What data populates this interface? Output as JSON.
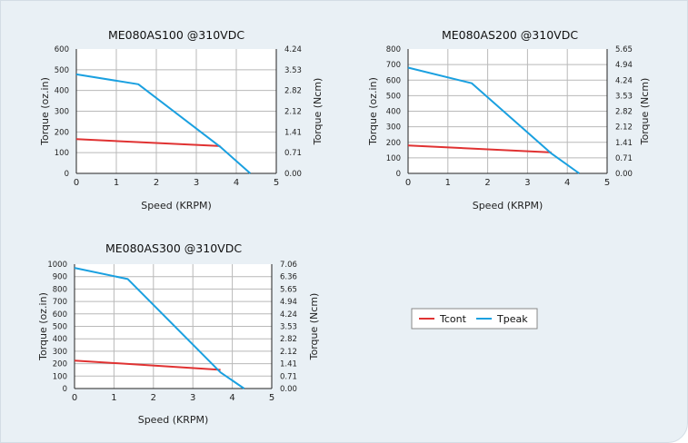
{
  "colors": {
    "tcont": "#e03232",
    "tpeak": "#1aa0e0",
    "grid": "#b9b9b9",
    "panel": "#e9f0f5"
  },
  "legend": {
    "tcont": "Tcont",
    "tpeak": "Tpeak"
  },
  "chart_data": [
    {
      "type": "line",
      "title": "ME080AS100 @310VDC",
      "xlabel": "Speed (KRPM)",
      "ylabel": "Torque (oz.in)",
      "y2label": "Torque (Ncm)",
      "xlim": [
        0,
        5
      ],
      "ylim": [
        0,
        600
      ],
      "x_ticks": [
        "0",
        "1",
        "2",
        "3",
        "4",
        "5"
      ],
      "y_ticks": [
        "0",
        "100",
        "200",
        "300",
        "400",
        "500",
        "600"
      ],
      "y2_ticks": [
        "0.00",
        "0.71",
        "1.41",
        "2.12",
        "2.82",
        "3.53",
        "4.24"
      ],
      "grid": true,
      "series": [
        {
          "name": "Tcont",
          "x": [
            0,
            3.6
          ],
          "y": [
            165,
            132
          ]
        },
        {
          "name": "Tpeak",
          "x": [
            0,
            1.55,
            3.6,
            4.35
          ],
          "y": [
            478,
            430,
            128,
            0
          ]
        }
      ]
    },
    {
      "type": "line",
      "title": "ME080AS200 @310VDC",
      "xlabel": "Speed (KRPM)",
      "ylabel": "Torque (oz.in)",
      "y2label": "Torque (Ncm)",
      "xlim": [
        0,
        5
      ],
      "ylim": [
        0,
        800
      ],
      "x_ticks": [
        "0",
        "1",
        "2",
        "3",
        "4",
        "5"
      ],
      "y_ticks": [
        "0",
        "100",
        "200",
        "300",
        "400",
        "500",
        "600",
        "700",
        "800"
      ],
      "y2_ticks": [
        "0.00",
        "0.71",
        "1.41",
        "2.12",
        "2.82",
        "3.53",
        "4.24",
        "4.94",
        "5.65"
      ],
      "grid": true,
      "series": [
        {
          "name": "Tcont",
          "x": [
            0,
            3.6
          ],
          "y": [
            180,
            135
          ]
        },
        {
          "name": "Tpeak",
          "x": [
            0,
            1.6,
            3.6,
            4.3
          ],
          "y": [
            680,
            580,
            128,
            0
          ]
        }
      ]
    },
    {
      "type": "line",
      "title": "ME080AS300 @310VDC",
      "xlabel": "Speed (KRPM)",
      "ylabel": "Torque (oz.in)",
      "y2label": "Torque (Ncm)",
      "xlim": [
        0,
        5
      ],
      "ylim": [
        0,
        1000
      ],
      "x_ticks": [
        "0",
        "1",
        "2",
        "3",
        "4",
        "5"
      ],
      "y_ticks": [
        "0",
        "100",
        "200",
        "300",
        "400",
        "500",
        "600",
        "700",
        "800",
        "900",
        "1000"
      ],
      "y2_ticks": [
        "0.00",
        "0.71",
        "1.41",
        "2.12",
        "2.82",
        "3.53",
        "4.24",
        "4.94",
        "5.65",
        "6.36",
        "7.06"
      ],
      "grid": true,
      "series": [
        {
          "name": "Tcont",
          "x": [
            0,
            3.7
          ],
          "y": [
            225,
            150
          ]
        },
        {
          "name": "Tpeak",
          "x": [
            0,
            1.35,
            3.7,
            4.3
          ],
          "y": [
            970,
            880,
            130,
            0
          ]
        }
      ]
    }
  ]
}
